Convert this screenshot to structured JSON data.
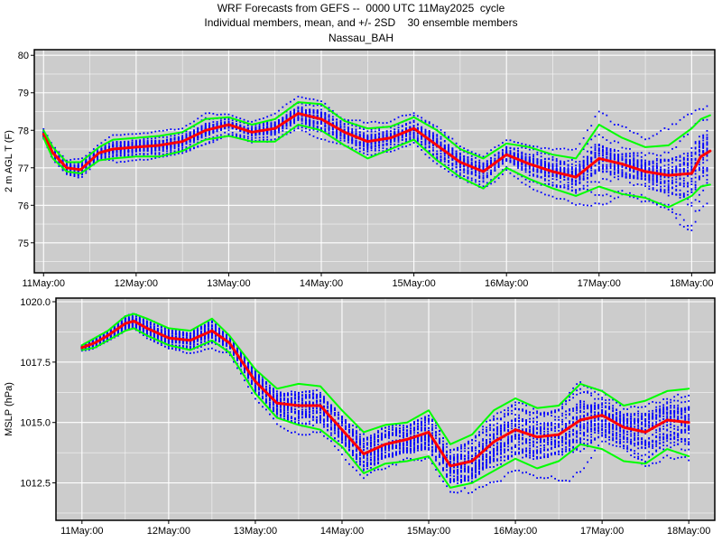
{
  "header": {
    "line1": "WRF Forecasts from GEFS --  0000 UTC 11May2025  cycle",
    "line2": "Individual members, mean, and +/- 2SD    30 ensemble members",
    "line3": "Nassau_BAH"
  },
  "colors": {
    "panel_bg": "#cccccc",
    "grid": "#ffffff",
    "members": "#0000ff",
    "mean": "#ff0000",
    "sd": "#00ff00"
  },
  "chart_data": [
    {
      "type": "line",
      "ylabel": "2 m AGL T (F)",
      "xlabel": "",
      "x_ticks": [
        "11May:00",
        "12May:00",
        "13May:00",
        "14May:00",
        "15May:00",
        "16May:00",
        "17May:00",
        "18May:00"
      ],
      "xlim_days": [
        -0.1,
        7.25
      ],
      "ylim": [
        74.2,
        80.15
      ],
      "y_ticks": [
        75,
        76,
        77,
        78,
        79,
        80
      ],
      "grid": true,
      "members_count": 30,
      "series": [
        {
          "role": "mean",
          "x_days": [
            0.0,
            0.1,
            0.25,
            0.4,
            0.6,
            0.75,
            1.0,
            1.25,
            1.5,
            1.75,
            2.0,
            2.25,
            2.5,
            2.75,
            3.0,
            3.25,
            3.5,
            3.75,
            4.0,
            4.25,
            4.5,
            4.75,
            5.0,
            5.25,
            5.5,
            5.75,
            6.0,
            6.25,
            6.5,
            6.75,
            7.0,
            7.1,
            7.2
          ],
          "values": [
            77.9,
            77.4,
            77.0,
            76.95,
            77.4,
            77.5,
            77.55,
            77.6,
            77.7,
            78.0,
            78.15,
            77.95,
            78.05,
            78.45,
            78.3,
            77.95,
            77.7,
            77.8,
            78.05,
            77.6,
            77.15,
            76.9,
            77.35,
            77.1,
            76.9,
            76.75,
            77.25,
            77.1,
            76.9,
            76.8,
            76.85,
            77.3,
            77.45
          ]
        },
        {
          "role": "mean+2sd",
          "x_days": [
            0.0,
            0.1,
            0.25,
            0.4,
            0.6,
            0.75,
            1.0,
            1.25,
            1.5,
            1.75,
            2.0,
            2.25,
            2.5,
            2.75,
            3.0,
            3.25,
            3.5,
            3.75,
            4.0,
            4.25,
            4.5,
            4.75,
            5.0,
            5.25,
            5.5,
            5.75,
            6.0,
            6.25,
            6.5,
            6.75,
            7.0,
            7.1,
            7.2
          ],
          "values": [
            78.0,
            77.55,
            77.15,
            77.15,
            77.55,
            77.75,
            77.8,
            77.85,
            77.95,
            78.3,
            78.35,
            78.15,
            78.3,
            78.75,
            78.7,
            78.25,
            78.05,
            78.1,
            78.35,
            78.0,
            77.5,
            77.25,
            77.65,
            77.55,
            77.35,
            77.25,
            78.15,
            77.8,
            77.55,
            77.6,
            78.05,
            78.3,
            78.4
          ]
        },
        {
          "role": "mean-2sd",
          "x_days": [
            0.0,
            0.1,
            0.25,
            0.4,
            0.6,
            0.75,
            1.0,
            1.25,
            1.5,
            1.75,
            2.0,
            2.25,
            2.5,
            2.75,
            3.0,
            3.25,
            3.5,
            3.75,
            4.0,
            4.25,
            4.5,
            4.75,
            5.0,
            5.25,
            5.5,
            5.75,
            6.0,
            6.25,
            6.5,
            6.75,
            7.0,
            7.1,
            7.2
          ],
          "values": [
            77.8,
            77.25,
            76.9,
            76.85,
            77.2,
            77.25,
            77.3,
            77.3,
            77.45,
            77.75,
            77.85,
            77.7,
            77.7,
            78.15,
            78.0,
            77.6,
            77.25,
            77.5,
            77.75,
            77.2,
            76.75,
            76.45,
            77.0,
            76.7,
            76.45,
            76.25,
            76.5,
            76.3,
            76.2,
            75.95,
            76.25,
            76.5,
            76.55
          ]
        }
      ]
    },
    {
      "type": "line",
      "ylabel": "MSLP (hPa)",
      "xlabel": "",
      "x_ticks": [
        "11May:00",
        "12May:00",
        "13May:00",
        "14May:00",
        "15May:00",
        "16May:00",
        "17May:00",
        "18May:00"
      ],
      "xlim_days": [
        -0.3,
        7.3
      ],
      "ylim": [
        1010.95,
        1020.15
      ],
      "y_ticks": [
        1012.5,
        1015.0,
        1017.5,
        1020.0
      ],
      "y_tick_labels": [
        "1012.5",
        "1015.0",
        "1017.5",
        "1020.0"
      ],
      "grid": true,
      "members_count": 30,
      "series": [
        {
          "role": "mean",
          "x_days": [
            0.0,
            0.15,
            0.3,
            0.5,
            0.6,
            0.75,
            1.0,
            1.25,
            1.5,
            1.7,
            2.0,
            2.25,
            2.5,
            2.75,
            3.0,
            3.25,
            3.5,
            3.75,
            4.0,
            4.25,
            4.5,
            4.75,
            5.0,
            5.25,
            5.5,
            5.75,
            6.0,
            6.25,
            6.5,
            6.75,
            7.0
          ],
          "values": [
            1018.1,
            1018.3,
            1018.6,
            1019.1,
            1019.2,
            1018.9,
            1018.5,
            1018.4,
            1018.8,
            1018.3,
            1016.7,
            1015.8,
            1015.7,
            1015.7,
            1014.7,
            1013.7,
            1014.1,
            1014.3,
            1014.6,
            1013.2,
            1013.4,
            1014.2,
            1014.7,
            1014.4,
            1014.5,
            1015.1,
            1015.3,
            1014.8,
            1014.6,
            1015.1,
            1015.0
          ]
        },
        {
          "role": "mean+2sd",
          "x_days": [
            0.0,
            0.15,
            0.3,
            0.5,
            0.6,
            0.75,
            1.0,
            1.25,
            1.5,
            1.7,
            2.0,
            2.25,
            2.5,
            2.75,
            3.0,
            3.25,
            3.5,
            3.75,
            4.0,
            4.25,
            4.5,
            4.75,
            5.0,
            5.25,
            5.5,
            5.75,
            6.0,
            6.25,
            6.5,
            6.75,
            7.0
          ],
          "values": [
            1018.2,
            1018.5,
            1018.8,
            1019.4,
            1019.5,
            1019.3,
            1018.9,
            1018.8,
            1019.3,
            1018.6,
            1017.2,
            1016.4,
            1016.6,
            1016.5,
            1015.5,
            1014.6,
            1014.9,
            1015.0,
            1015.5,
            1014.1,
            1014.5,
            1015.5,
            1016.0,
            1015.6,
            1015.7,
            1016.6,
            1016.3,
            1015.7,
            1015.9,
            1016.3,
            1016.4
          ]
        },
        {
          "role": "mean-2sd",
          "x_days": [
            0.0,
            0.15,
            0.3,
            0.5,
            0.6,
            0.75,
            1.0,
            1.25,
            1.5,
            1.7,
            2.0,
            2.25,
            2.5,
            2.75,
            3.0,
            3.25,
            3.5,
            3.75,
            4.0,
            4.25,
            4.5,
            4.75,
            5.0,
            5.25,
            5.5,
            5.75,
            6.0,
            6.25,
            6.5,
            6.75,
            7.0
          ],
          "values": [
            1018.0,
            1018.1,
            1018.4,
            1018.8,
            1018.9,
            1018.6,
            1018.2,
            1018.0,
            1018.4,
            1017.9,
            1016.2,
            1015.2,
            1014.9,
            1014.7,
            1014.0,
            1012.9,
            1013.3,
            1013.4,
            1013.6,
            1012.3,
            1012.5,
            1013.0,
            1013.5,
            1013.1,
            1013.4,
            1014.1,
            1013.9,
            1013.4,
            1013.3,
            1013.9,
            1013.6
          ]
        }
      ]
    }
  ]
}
